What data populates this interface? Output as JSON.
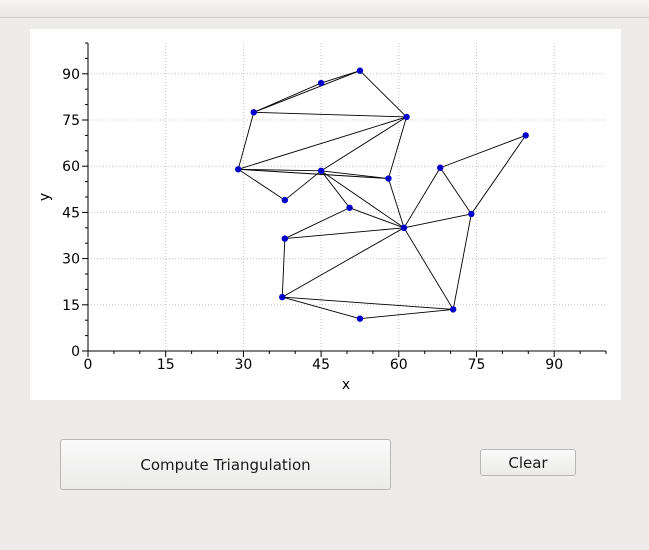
{
  "chart_data": {
    "type": "scatter",
    "xlabel": "x",
    "ylabel": "y",
    "xlim": [
      0,
      100
    ],
    "ylim": [
      0,
      100
    ],
    "xticks": [
      0,
      15,
      30,
      45,
      60,
      75,
      90
    ],
    "yticks": [
      0,
      15,
      30,
      45,
      60,
      75,
      90
    ],
    "grid": true,
    "point_color": "#0000c8",
    "edge_color": "#000000",
    "points": [
      {
        "x": 52.5,
        "y": 91
      },
      {
        "x": 45,
        "y": 87
      },
      {
        "x": 32,
        "y": 77.5
      },
      {
        "x": 61.5,
        "y": 76
      },
      {
        "x": 84.5,
        "y": 70
      },
      {
        "x": 29,
        "y": 59
      },
      {
        "x": 45,
        "y": 58.5
      },
      {
        "x": 58,
        "y": 56
      },
      {
        "x": 68,
        "y": 59.5
      },
      {
        "x": 38,
        "y": 49
      },
      {
        "x": 50.5,
        "y": 46.5
      },
      {
        "x": 74,
        "y": 44.5
      },
      {
        "x": 61,
        "y": 40
      },
      {
        "x": 38,
        "y": 36.5
      },
      {
        "x": 37.5,
        "y": 17.5
      },
      {
        "x": 70.5,
        "y": 13.5
      },
      {
        "x": 52.5,
        "y": 10.5
      }
    ],
    "edges": [
      [
        0,
        1
      ],
      [
        1,
        2
      ],
      [
        0,
        2
      ],
      [
        0,
        3
      ],
      [
        2,
        3
      ],
      [
        2,
        5
      ],
      [
        5,
        3
      ],
      [
        5,
        6
      ],
      [
        6,
        3
      ],
      [
        6,
        7
      ],
      [
        7,
        3
      ],
      [
        5,
        9
      ],
      [
        9,
        6
      ],
      [
        5,
        7
      ],
      [
        6,
        10
      ],
      [
        10,
        12
      ],
      [
        7,
        12
      ],
      [
        6,
        12
      ],
      [
        12,
        8
      ],
      [
        8,
        11
      ],
      [
        11,
        12
      ],
      [
        8,
        4
      ],
      [
        4,
        11
      ],
      [
        10,
        13
      ],
      [
        13,
        12
      ],
      [
        13,
        14
      ],
      [
        14,
        12
      ],
      [
        12,
        15
      ],
      [
        11,
        15
      ],
      [
        14,
        15
      ],
      [
        14,
        16
      ],
      [
        16,
        15
      ]
    ]
  },
  "buttons": {
    "compute_label": "Compute Triangulation",
    "clear_label": "Clear"
  }
}
